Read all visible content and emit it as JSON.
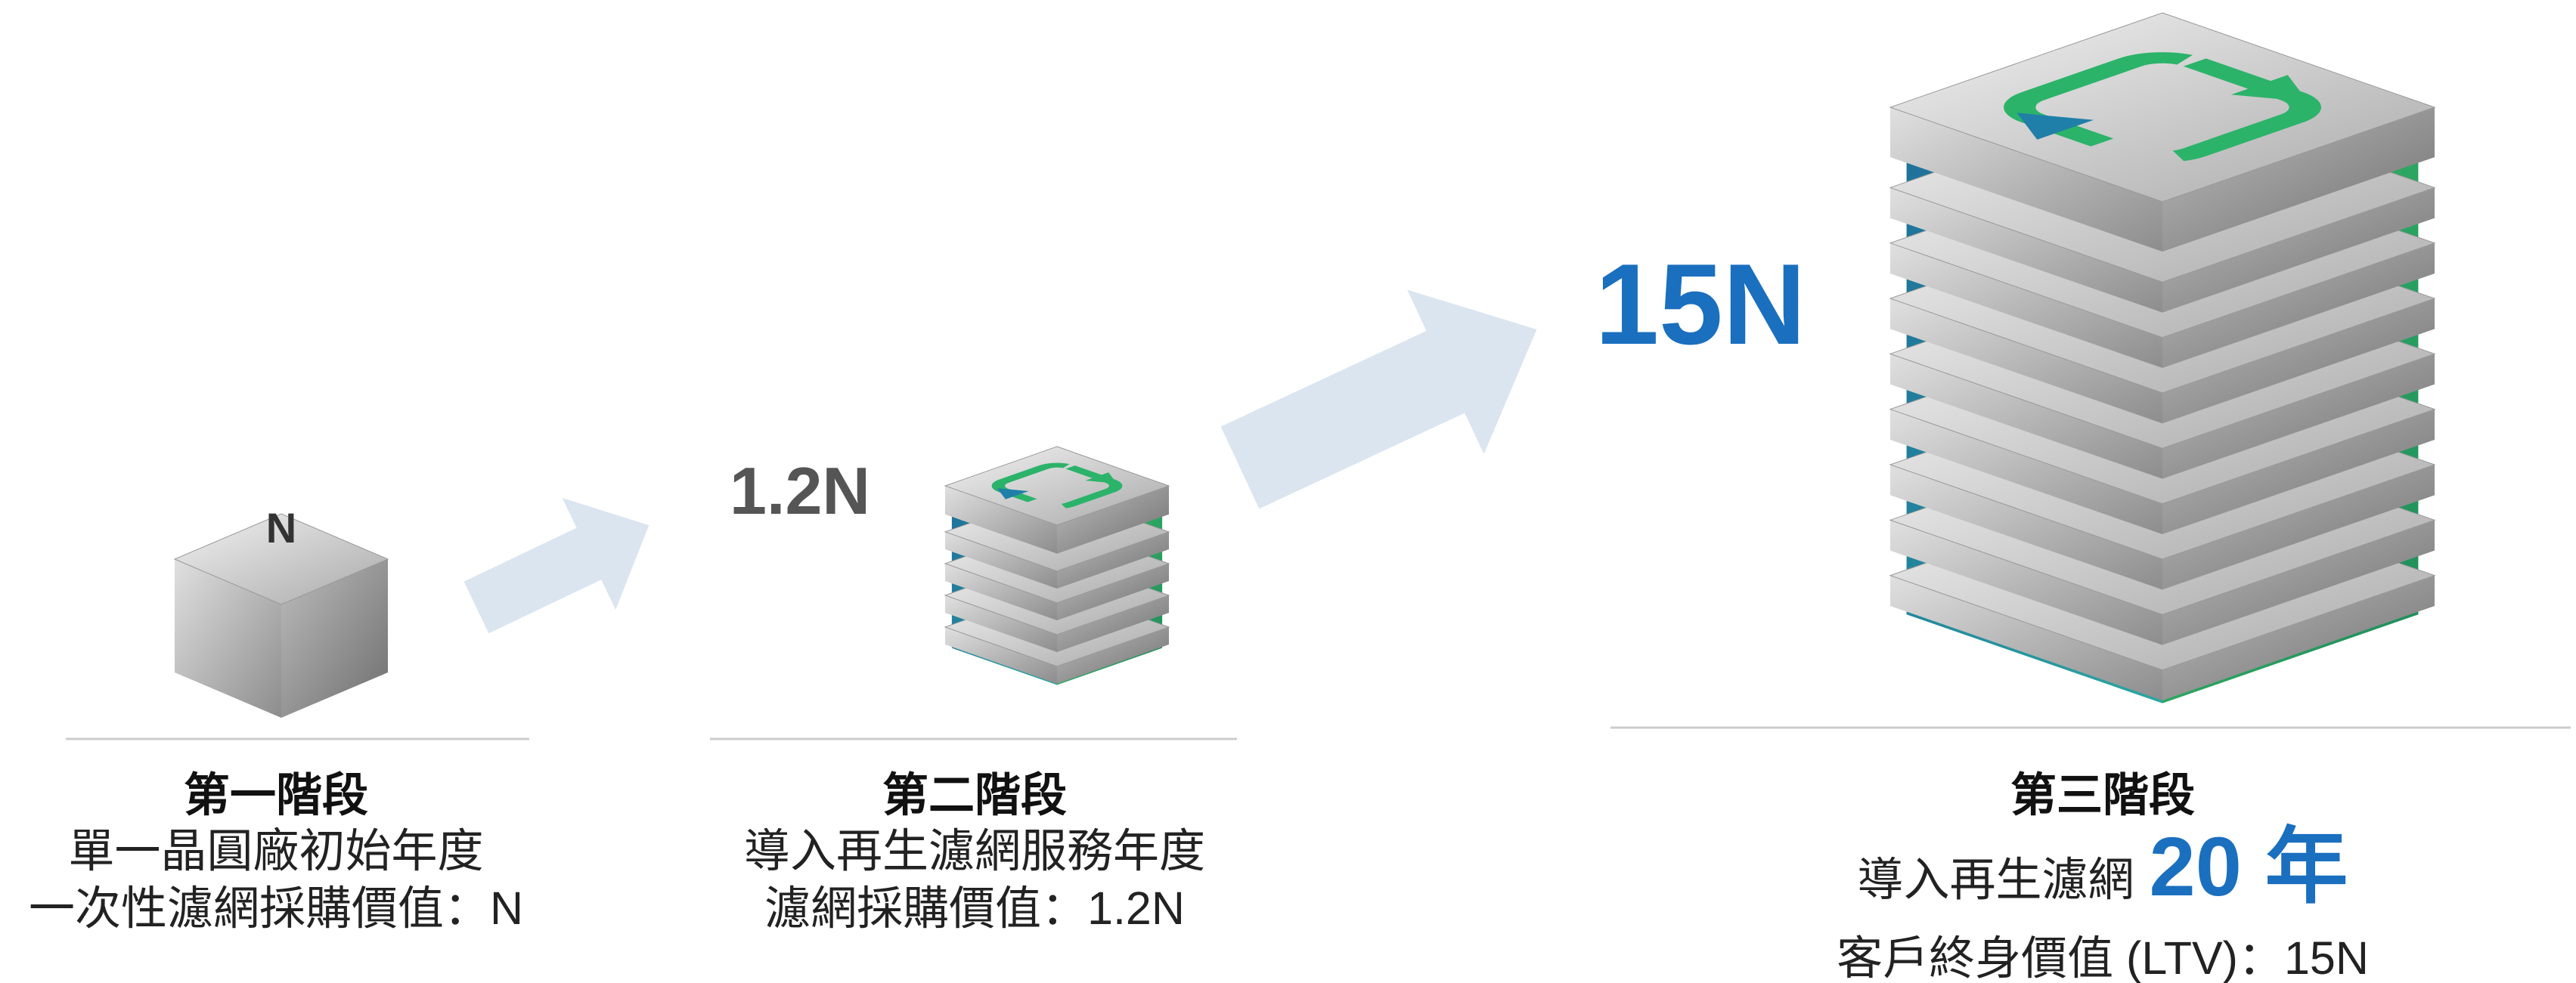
{
  "stages": [
    {
      "icon_label": "N",
      "title": "第一階段",
      "lines": [
        "單一晶圓廠初始年度",
        "一次性濾網採購價值：N"
      ]
    },
    {
      "value_label": "1.2N",
      "title": "第二階段",
      "lines": [
        "導入再生濾網服務年度",
        "濾網採購價值：1.2N"
      ]
    },
    {
      "value_label": "15N",
      "title": "第三階段",
      "lines": [
        {
          "text": "導入再生濾網",
          "highlight": "20 年"
        },
        "客戶終身價值 (LTV)：15N"
      ]
    }
  ]
}
